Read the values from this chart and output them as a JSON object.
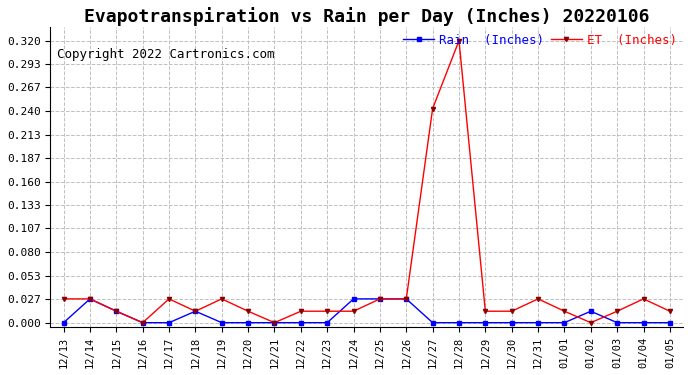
{
  "title": "Evapotranspiration vs Rain per Day (Inches) 20220106",
  "copyright": "Copyright 2022 Cartronics.com",
  "x_labels": [
    "12/13",
    "12/14",
    "12/15",
    "12/16",
    "12/17",
    "12/18",
    "12/19",
    "12/20",
    "12/21",
    "12/22",
    "12/23",
    "12/24",
    "12/25",
    "12/26",
    "12/27",
    "12/28",
    "12/29",
    "12/30",
    "12/31",
    "01/01",
    "01/02",
    "01/03",
    "01/04",
    "01/05"
  ],
  "rain_values": [
    0.0,
    0.027,
    0.013,
    0.0,
    0.0,
    0.013,
    0.0,
    0.0,
    0.0,
    0.0,
    0.0,
    0.027,
    0.027,
    0.027,
    0.0,
    0.0,
    0.0,
    0.0,
    0.0,
    0.0,
    0.013,
    0.0,
    0.0,
    0.0
  ],
  "et_values": [
    0.027,
    0.027,
    0.013,
    0.0,
    0.027,
    0.013,
    0.027,
    0.013,
    0.0,
    0.013,
    0.013,
    0.013,
    0.027,
    0.027,
    0.243,
    0.32,
    0.013,
    0.013,
    0.027,
    0.013,
    0.0,
    0.013,
    0.027,
    0.013
  ],
  "rain_color": "blue",
  "et_color": "red",
  "marker_color_rain": "blue",
  "marker_color_et": "darkred",
  "background_color": "#ffffff",
  "grid_color": "#c0c0c0",
  "yticks": [
    0.0,
    0.027,
    0.053,
    0.08,
    0.107,
    0.133,
    0.16,
    0.187,
    0.213,
    0.24,
    0.267,
    0.293,
    0.32
  ],
  "ylim": [
    -0.005,
    0.335
  ],
  "legend_rain_label": "Rain  (Inches)",
  "legend_et_label": "ET  (Inches)",
  "title_fontsize": 13,
  "copyright_fontsize": 9
}
